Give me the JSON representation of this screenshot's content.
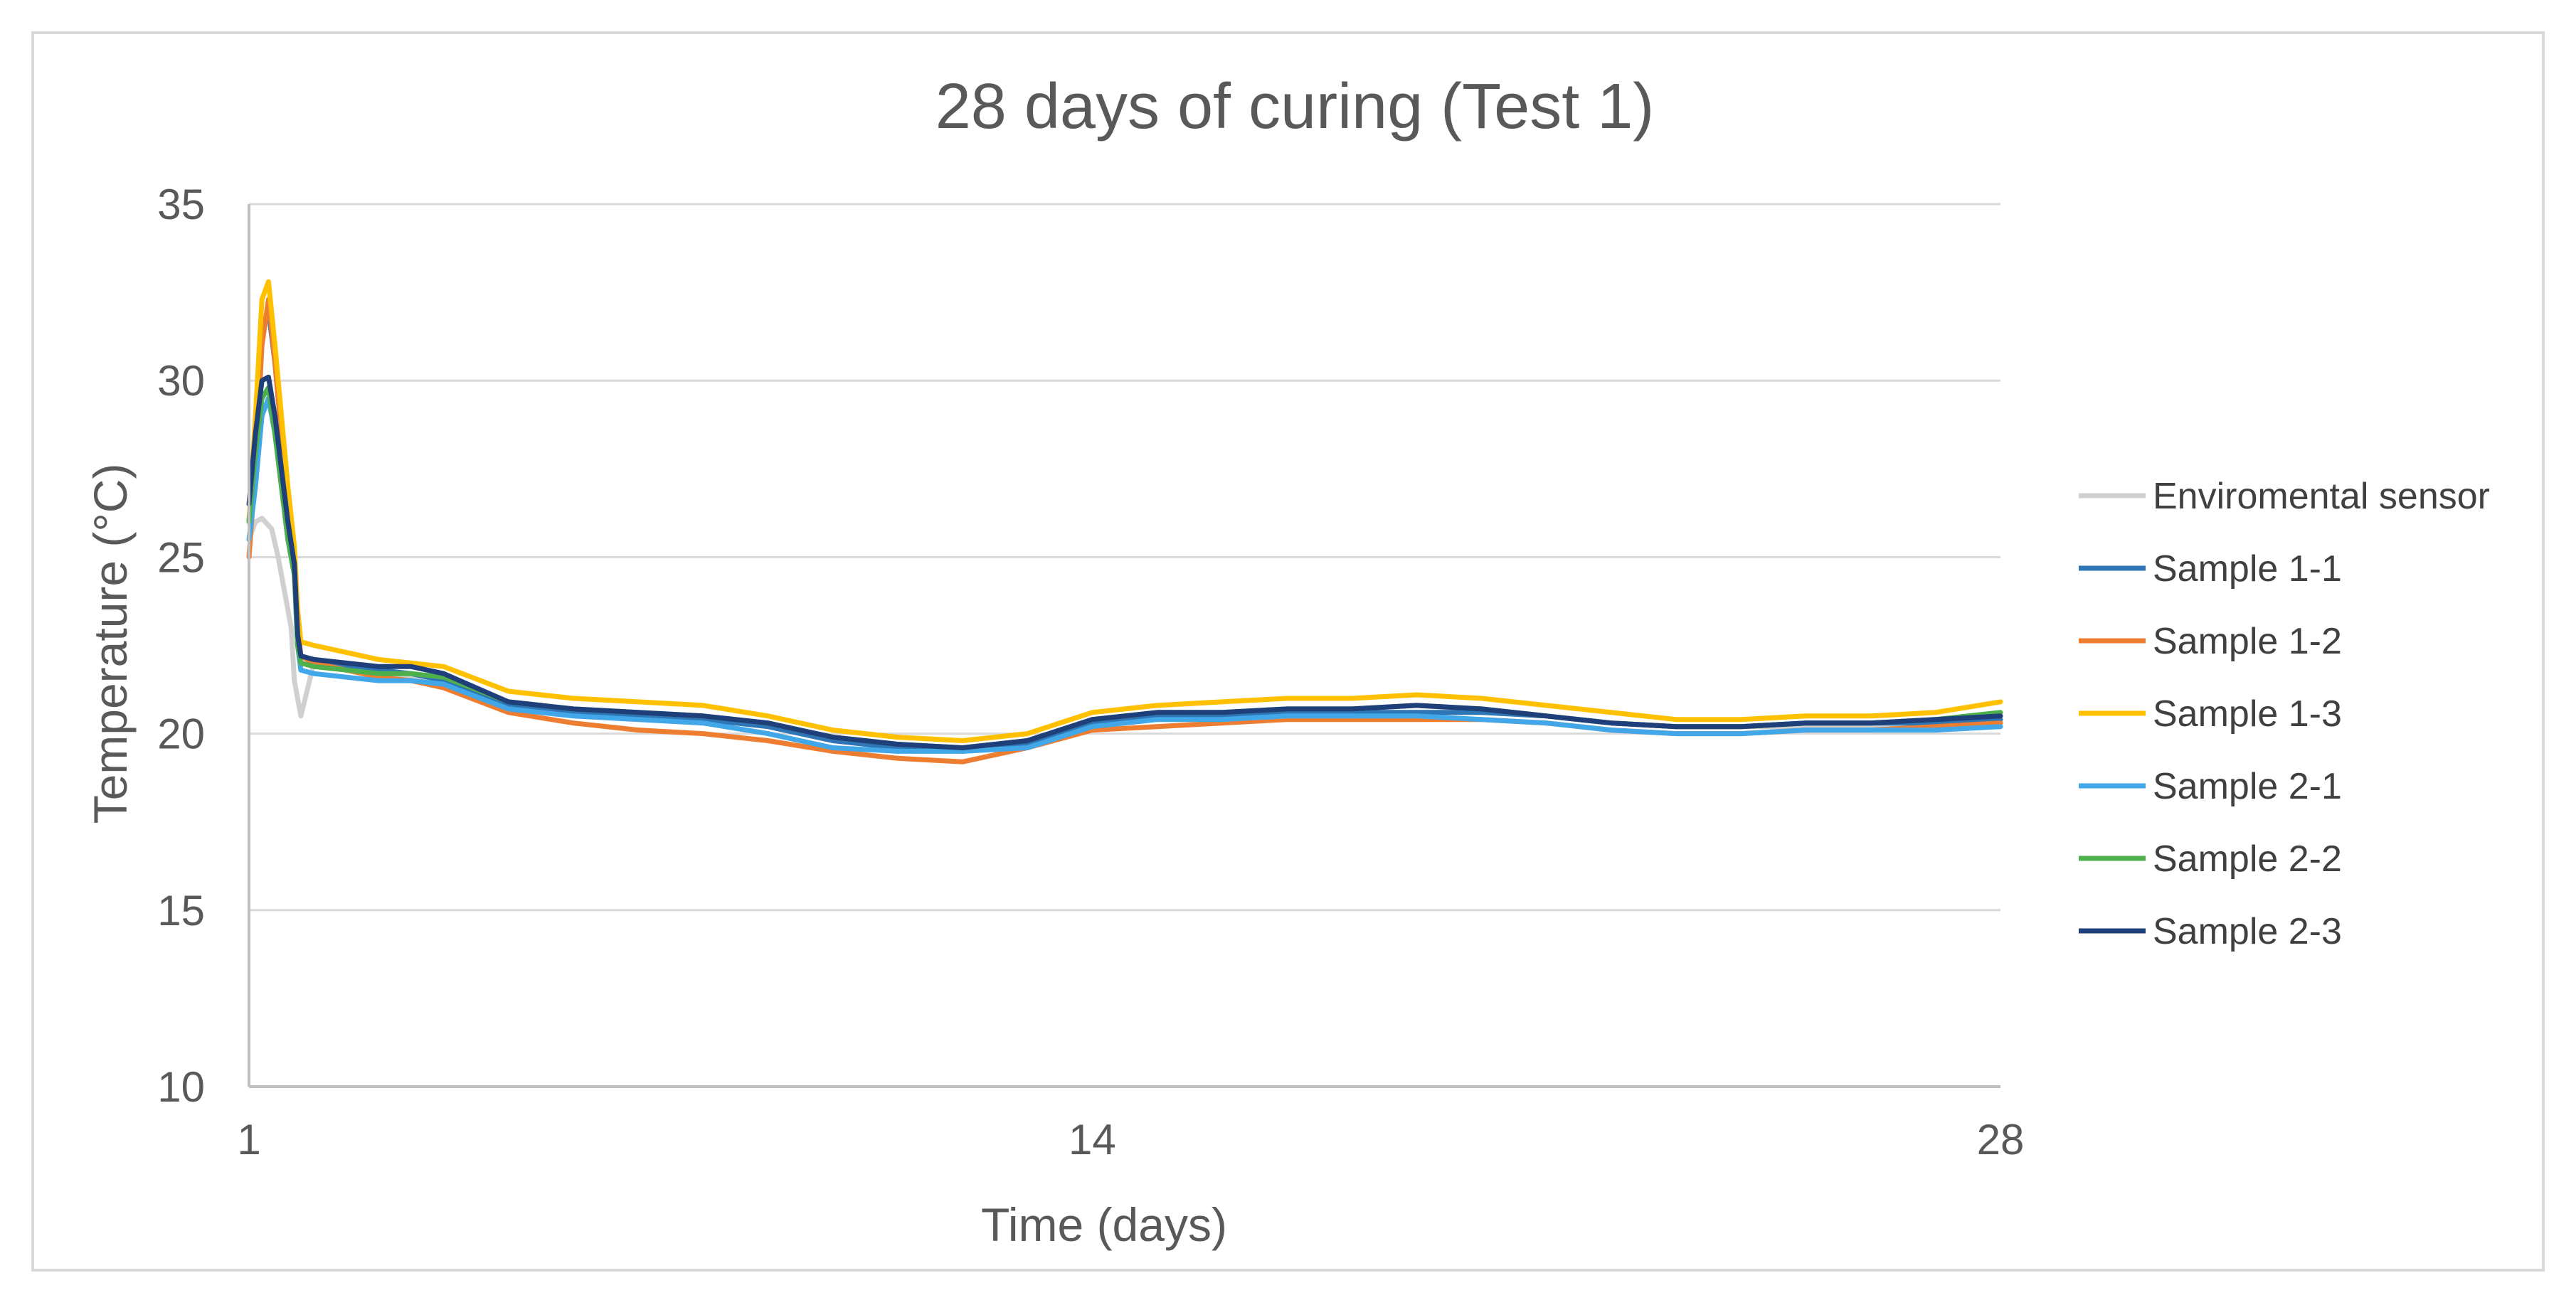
{
  "chart_data": {
    "type": "line",
    "title": "28 days of curing (Test 1)",
    "xlabel": "Time (days)",
    "ylabel": "Temperature (°C)",
    "xlim": [
      1,
      28
    ],
    "ylim": [
      10,
      35
    ],
    "x_ticks": [
      1,
      14,
      28
    ],
    "y_ticks": [
      10,
      15,
      20,
      25,
      30,
      35
    ],
    "grid": true,
    "legend": "right",
    "series": [
      {
        "name": "Enviromental sensor",
        "color": "#d0d0d0",
        "x": [
          1,
          1.1,
          1.2,
          1.35,
          1.45,
          1.55,
          1.65,
          1.7,
          1.8,
          2,
          2.5,
          3,
          3.5,
          4,
          5,
          6,
          7,
          8,
          9,
          10,
          11,
          12,
          13,
          14,
          15,
          16,
          17,
          18,
          19,
          20,
          21,
          22,
          23,
          24,
          25,
          26,
          27,
          28
        ],
        "values": [
          25.5,
          26,
          26.1,
          25.8,
          25,
          24,
          23,
          21.5,
          20.5,
          22,
          21.8,
          21.7,
          21.6,
          21.5,
          20.8,
          20.6,
          20.5,
          20.4,
          20.2,
          19.8,
          19.6,
          19.5,
          19.7,
          20.3,
          20.4,
          20.5,
          20.5,
          20.6,
          20.6,
          20.6,
          20.5,
          20.3,
          20.2,
          20.2,
          20.2,
          20.2,
          20.2,
          20.2
        ]
      },
      {
        "name": "Sample 1-1",
        "color": "#2e75b6",
        "x": [
          1,
          1.1,
          1.2,
          1.3,
          1.4,
          1.5,
          1.6,
          1.7,
          1.75,
          1.8,
          2,
          2.5,
          3,
          3.5,
          4,
          5,
          6,
          7,
          8,
          9,
          10,
          11,
          12,
          13,
          14,
          15,
          16,
          17,
          18,
          19,
          20,
          21,
          22,
          23,
          24,
          25,
          26,
          27,
          28
        ],
        "values": [
          26,
          28,
          31.5,
          32,
          30.5,
          28.5,
          26.5,
          25,
          23,
          22.2,
          22,
          21.9,
          21.8,
          21.7,
          21.5,
          20.8,
          20.6,
          20.5,
          20.4,
          20.2,
          19.8,
          19.6,
          19.5,
          19.7,
          20.3,
          20.5,
          20.5,
          20.6,
          20.6,
          20.6,
          20.6,
          20.5,
          20.3,
          20.2,
          20.2,
          20.3,
          20.3,
          20.3,
          20.4
        ]
      },
      {
        "name": "Sample 1-2",
        "color": "#ed7d31",
        "x": [
          1,
          1.1,
          1.2,
          1.3,
          1.4,
          1.5,
          1.6,
          1.7,
          1.75,
          1.8,
          2,
          2.5,
          3,
          3.5,
          4,
          5,
          6,
          7,
          8,
          9,
          10,
          11,
          12,
          13,
          14,
          15,
          16,
          17,
          18,
          19,
          20,
          21,
          22,
          23,
          24,
          25,
          26,
          27,
          28
        ],
        "values": [
          25,
          27.5,
          31,
          32.3,
          30.5,
          28.5,
          26.5,
          25,
          23,
          22.2,
          22,
          21.8,
          21.6,
          21.5,
          21.3,
          20.6,
          20.3,
          20.1,
          20.0,
          19.8,
          19.5,
          19.3,
          19.2,
          19.6,
          20.1,
          20.2,
          20.3,
          20.4,
          20.4,
          20.4,
          20.4,
          20.3,
          20.1,
          20.0,
          20.0,
          20.1,
          20.1,
          20.2,
          20.3
        ]
      },
      {
        "name": "Sample 1-3",
        "color": "#ffc000",
        "x": [
          1,
          1.1,
          1.2,
          1.3,
          1.4,
          1.5,
          1.6,
          1.7,
          1.75,
          1.8,
          2,
          2.5,
          3,
          3.5,
          4,
          5,
          6,
          7,
          8,
          9,
          10,
          11,
          12,
          13,
          14,
          15,
          16,
          17,
          18,
          19,
          20,
          21,
          22,
          23,
          24,
          25,
          26,
          27,
          28
        ],
        "values": [
          26,
          29,
          32.3,
          32.8,
          31,
          29,
          27,
          25.3,
          23.5,
          22.6,
          22.5,
          22.3,
          22.1,
          22.0,
          21.9,
          21.2,
          21.0,
          20.9,
          20.8,
          20.5,
          20.1,
          19.9,
          19.8,
          20.0,
          20.6,
          20.8,
          20.9,
          21.0,
          21.0,
          21.1,
          21.0,
          20.8,
          20.6,
          20.4,
          20.4,
          20.5,
          20.5,
          20.6,
          20.9
        ]
      },
      {
        "name": "Sample 2-1",
        "color": "#41a7e8",
        "x": [
          1,
          1.1,
          1.2,
          1.3,
          1.4,
          1.5,
          1.6,
          1.7,
          1.75,
          1.8,
          2,
          2.5,
          3,
          3.5,
          4,
          5,
          6,
          7,
          8,
          9,
          10,
          11,
          12,
          13,
          14,
          15,
          16,
          17,
          18,
          19,
          20,
          21,
          22,
          23,
          24,
          25,
          26,
          27,
          28
        ],
        "values": [
          25.5,
          27,
          29,
          29.5,
          28.5,
          27,
          25.5,
          24.5,
          22.5,
          21.8,
          21.7,
          21.6,
          21.5,
          21.5,
          21.4,
          20.7,
          20.5,
          20.4,
          20.3,
          20.0,
          19.6,
          19.5,
          19.5,
          19.6,
          20.2,
          20.4,
          20.4,
          20.5,
          20.5,
          20.5,
          20.4,
          20.3,
          20.1,
          20.0,
          20.0,
          20.1,
          20.1,
          20.1,
          20.2
        ]
      },
      {
        "name": "Sample 2-2",
        "color": "#4eb04a",
        "x": [
          1,
          1.1,
          1.2,
          1.3,
          1.4,
          1.5,
          1.6,
          1.7,
          1.75,
          1.8,
          2,
          2.5,
          3,
          3.5,
          4,
          5,
          6,
          7,
          8,
          9,
          10,
          11,
          12,
          13,
          14,
          15,
          16,
          17,
          18,
          19,
          20,
          21,
          22,
          23,
          24,
          25,
          26,
          27,
          28
        ],
        "values": [
          26,
          28,
          29.5,
          29.8,
          28.5,
          27,
          25.5,
          24.5,
          22.5,
          22.0,
          21.9,
          21.8,
          21.7,
          21.7,
          21.6,
          20.9,
          20.7,
          20.6,
          20.5,
          20.3,
          19.9,
          19.7,
          19.6,
          19.8,
          20.4,
          20.6,
          20.6,
          20.7,
          20.7,
          20.8,
          20.7,
          20.5,
          20.3,
          20.2,
          20.2,
          20.3,
          20.3,
          20.4,
          20.6
        ]
      },
      {
        "name": "Sample 2-3",
        "color": "#1f3f7a",
        "x": [
          1,
          1.1,
          1.2,
          1.3,
          1.4,
          1.5,
          1.6,
          1.7,
          1.75,
          1.8,
          2,
          2.5,
          3,
          3.5,
          4,
          5,
          6,
          7,
          8,
          9,
          10,
          11,
          12,
          13,
          14,
          15,
          16,
          17,
          18,
          19,
          20,
          21,
          22,
          23,
          24,
          25,
          26,
          27,
          28
        ],
        "values": [
          26.5,
          28.5,
          30,
          30.1,
          29,
          27.5,
          26,
          24.8,
          22.8,
          22.2,
          22.1,
          22.0,
          21.9,
          21.9,
          21.7,
          20.9,
          20.7,
          20.6,
          20.5,
          20.3,
          19.9,
          19.7,
          19.6,
          19.8,
          20.4,
          20.6,
          20.6,
          20.7,
          20.7,
          20.8,
          20.7,
          20.5,
          20.3,
          20.2,
          20.2,
          20.3,
          20.3,
          20.4,
          20.5
        ]
      }
    ]
  }
}
